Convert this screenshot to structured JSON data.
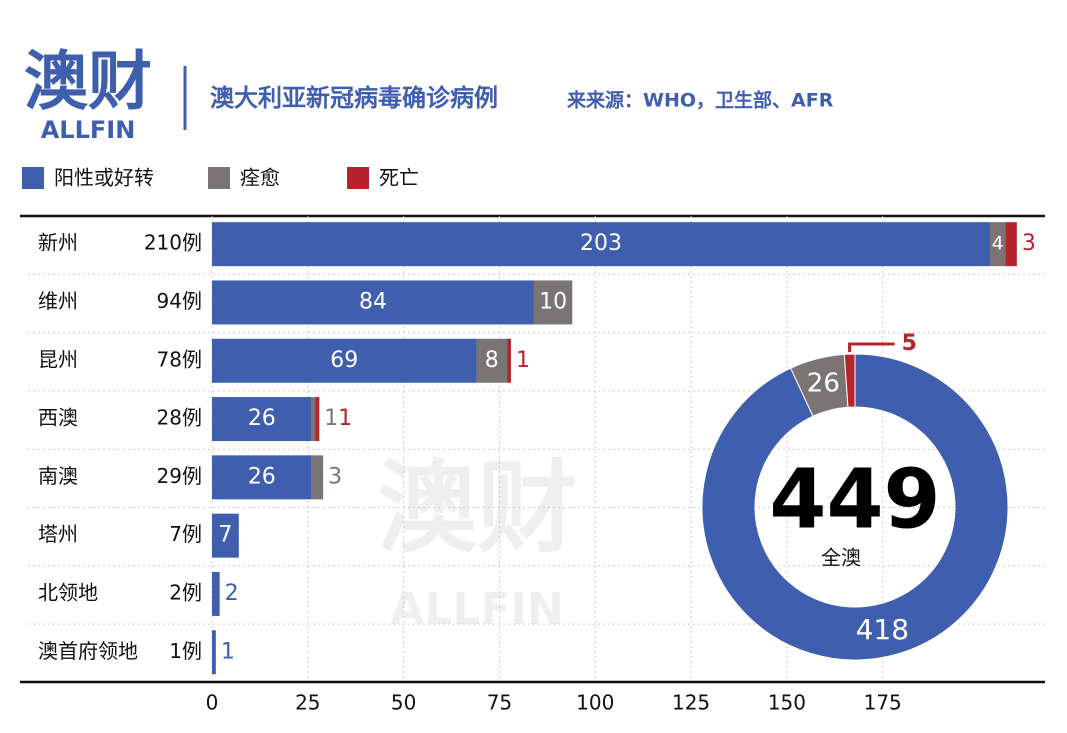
{
  "header": {
    "logo": "澳财",
    "logo_sub": "ALLFIN",
    "title": "澳大利亚新冠病毒确诊病例",
    "source": "来来源：WHO，卫生部、AFR"
  },
  "watermark": {
    "logo": "澳财",
    "logo_sub": "ALLFIN"
  },
  "chart_data": [
    {
      "type": "bar",
      "orientation": "horizontal",
      "stacked": true,
      "categories": [
        "新州",
        "维州",
        "昆州",
        "西澳",
        "南澳",
        "塔州",
        "北领地",
        "澳首府领地"
      ],
      "category_totals": [
        "210例",
        "94例",
        "78例",
        "28例",
        "29例",
        "7例",
        "2例",
        "1例"
      ],
      "series": [
        {
          "name": "阳性或好转",
          "color": "#3f5fae",
          "values": [
            203,
            84,
            69,
            26,
            26,
            7,
            2,
            1
          ]
        },
        {
          "name": "痊愈",
          "color": "#7a7574",
          "values": [
            4,
            10,
            8,
            1,
            3,
            null,
            null,
            null
          ]
        },
        {
          "name": "死亡",
          "color": "#b5242c",
          "values": [
            3,
            null,
            1,
            1,
            null,
            null,
            null,
            null
          ]
        }
      ],
      "xlim": [
        0,
        215
      ],
      "xticks": [
        0,
        25,
        50,
        75,
        100,
        125,
        150,
        175
      ],
      "grid": true
    },
    {
      "type": "pie",
      "donut": true,
      "center_value": 449,
      "center_label": "全澳",
      "categories": [
        "阳性或好转",
        "痊愈",
        "死亡"
      ],
      "values": [
        418,
        26,
        5
      ],
      "colors": [
        "#3f5fae",
        "#7a7574",
        "#b5242c"
      ]
    }
  ]
}
